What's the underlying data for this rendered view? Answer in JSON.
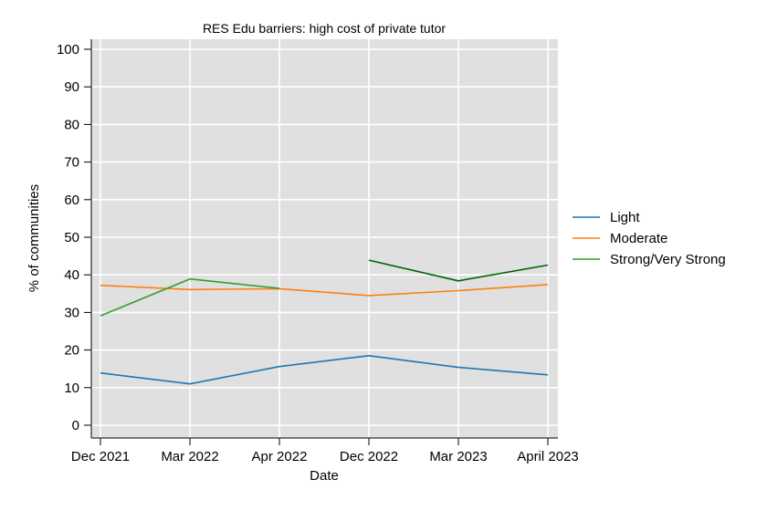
{
  "chart_data": {
    "type": "line",
    "title": "RES Edu barriers: high cost of private tutor",
    "xlabel": "Date",
    "ylabel": "% of communities",
    "categories": [
      "Dec 2021",
      "Mar 2022",
      "Apr 2022",
      "Dec 2022",
      "Mar 2023",
      "April 2023"
    ],
    "ylim": [
      0,
      100
    ],
    "yticks": [
      0,
      10,
      20,
      30,
      40,
      50,
      60,
      70,
      80,
      90,
      100
    ],
    "grid": true,
    "legend_position": "right",
    "background": "#e0e0e0",
    "series": [
      {
        "name": "Light",
        "color": "#1f77b4",
        "values": [
          13.9,
          11.0,
          15.6,
          18.5,
          15.4,
          13.4
        ]
      },
      {
        "name": "Moderate",
        "color": "#ff7f0e",
        "values": [
          37.2,
          36.1,
          36.3,
          34.5,
          35.8,
          37.4
        ]
      },
      {
        "name": "Strong/Very Strong",
        "color": "#2ca02c",
        "values": [
          29.1,
          38.9,
          36.4,
          null,
          null,
          null
        ]
      }
    ],
    "unlabeled_series": [
      {
        "color": "#006400",
        "values": [
          null,
          null,
          null,
          43.9,
          38.4,
          42.6
        ]
      }
    ]
  }
}
